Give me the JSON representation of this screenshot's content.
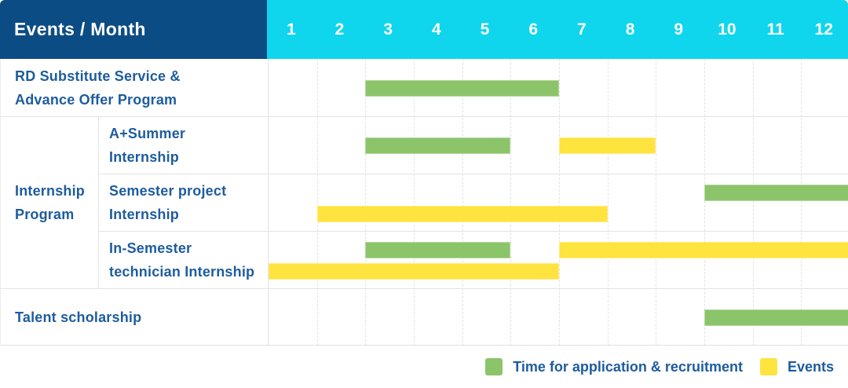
{
  "header": {
    "title": "Events / Month",
    "months": [
      "1",
      "2",
      "3",
      "4",
      "5",
      "6",
      "7",
      "8",
      "9",
      "10",
      "11",
      "12"
    ]
  },
  "display": {
    "row_labels": [
      "RD Substitute Service &\nAdvance Offer Program",
      "A+Summer\nInternship",
      "Semester project\nInternship",
      "In-Semester\ntechnician Internship",
      "Talent scholarship"
    ],
    "group_label": "Internship\nProgram"
  },
  "legend": [
    {
      "label": "Time for application & recruitment",
      "series_key": "recruitment"
    },
    {
      "label": "Events",
      "series_key": "events"
    }
  ],
  "colors": {
    "recruitment": "#8cc46a",
    "events": "#ffe33e",
    "header_bg": "#0c4c84",
    "months_bg": "#0fd6ec",
    "text_blue": "#1d5c9e"
  },
  "chart_data": {
    "type": "bar",
    "subtype": "gantt",
    "title": "Events / Month",
    "x": {
      "label": "Month",
      "ticks": [
        1,
        2,
        3,
        4,
        5,
        6,
        7,
        8,
        9,
        10,
        11,
        12
      ],
      "range": [
        1,
        12
      ]
    },
    "grid": "dashed-vertical-month-lines",
    "legend": [
      "Time for application & recruitment",
      "Events"
    ],
    "legend_position": "bottom-right",
    "rows": [
      {
        "label": "RD Substitute Service & Advance Offer Program",
        "group": null,
        "n_lines": 1,
        "bars": [
          {
            "series": "Time for application & recruitment",
            "series_key": "recruitment",
            "start_month": 3,
            "end_month": 6,
            "line": 0
          }
        ]
      },
      {
        "label": "A+Summer Internship",
        "group": "Internship Program",
        "n_lines": 1,
        "bars": [
          {
            "series": "Time for application & recruitment",
            "series_key": "recruitment",
            "start_month": 3,
            "end_month": 5,
            "line": 0
          },
          {
            "series": "Events",
            "series_key": "events",
            "start_month": 7,
            "end_month": 8,
            "line": 0
          }
        ]
      },
      {
        "label": "Semester project Internship",
        "group": "Internship Program",
        "n_lines": 2,
        "bars": [
          {
            "series": "Time for application & recruitment",
            "series_key": "recruitment",
            "start_month": 10,
            "end_month": 12,
            "line": 0
          },
          {
            "series": "Events",
            "series_key": "events",
            "start_month": 2,
            "end_month": 7,
            "line": 1
          }
        ]
      },
      {
        "label": "In-Semester technician Internship",
        "group": "Internship Program",
        "n_lines": 2,
        "bars": [
          {
            "series": "Time for application & recruitment",
            "series_key": "recruitment",
            "start_month": 3,
            "end_month": 5,
            "line": 0
          },
          {
            "series": "Events",
            "series_key": "events",
            "start_month": 7,
            "end_month": 12,
            "line": 0
          },
          {
            "series": "Events",
            "series_key": "events",
            "start_month": 1,
            "end_month": 6,
            "line": 1
          }
        ]
      },
      {
        "label": "Talent scholarship",
        "group": null,
        "n_lines": 1,
        "bars": [
          {
            "series": "Time for application & recruitment",
            "series_key": "recruitment",
            "start_month": 10,
            "end_month": 12,
            "line": 0
          }
        ]
      }
    ]
  }
}
